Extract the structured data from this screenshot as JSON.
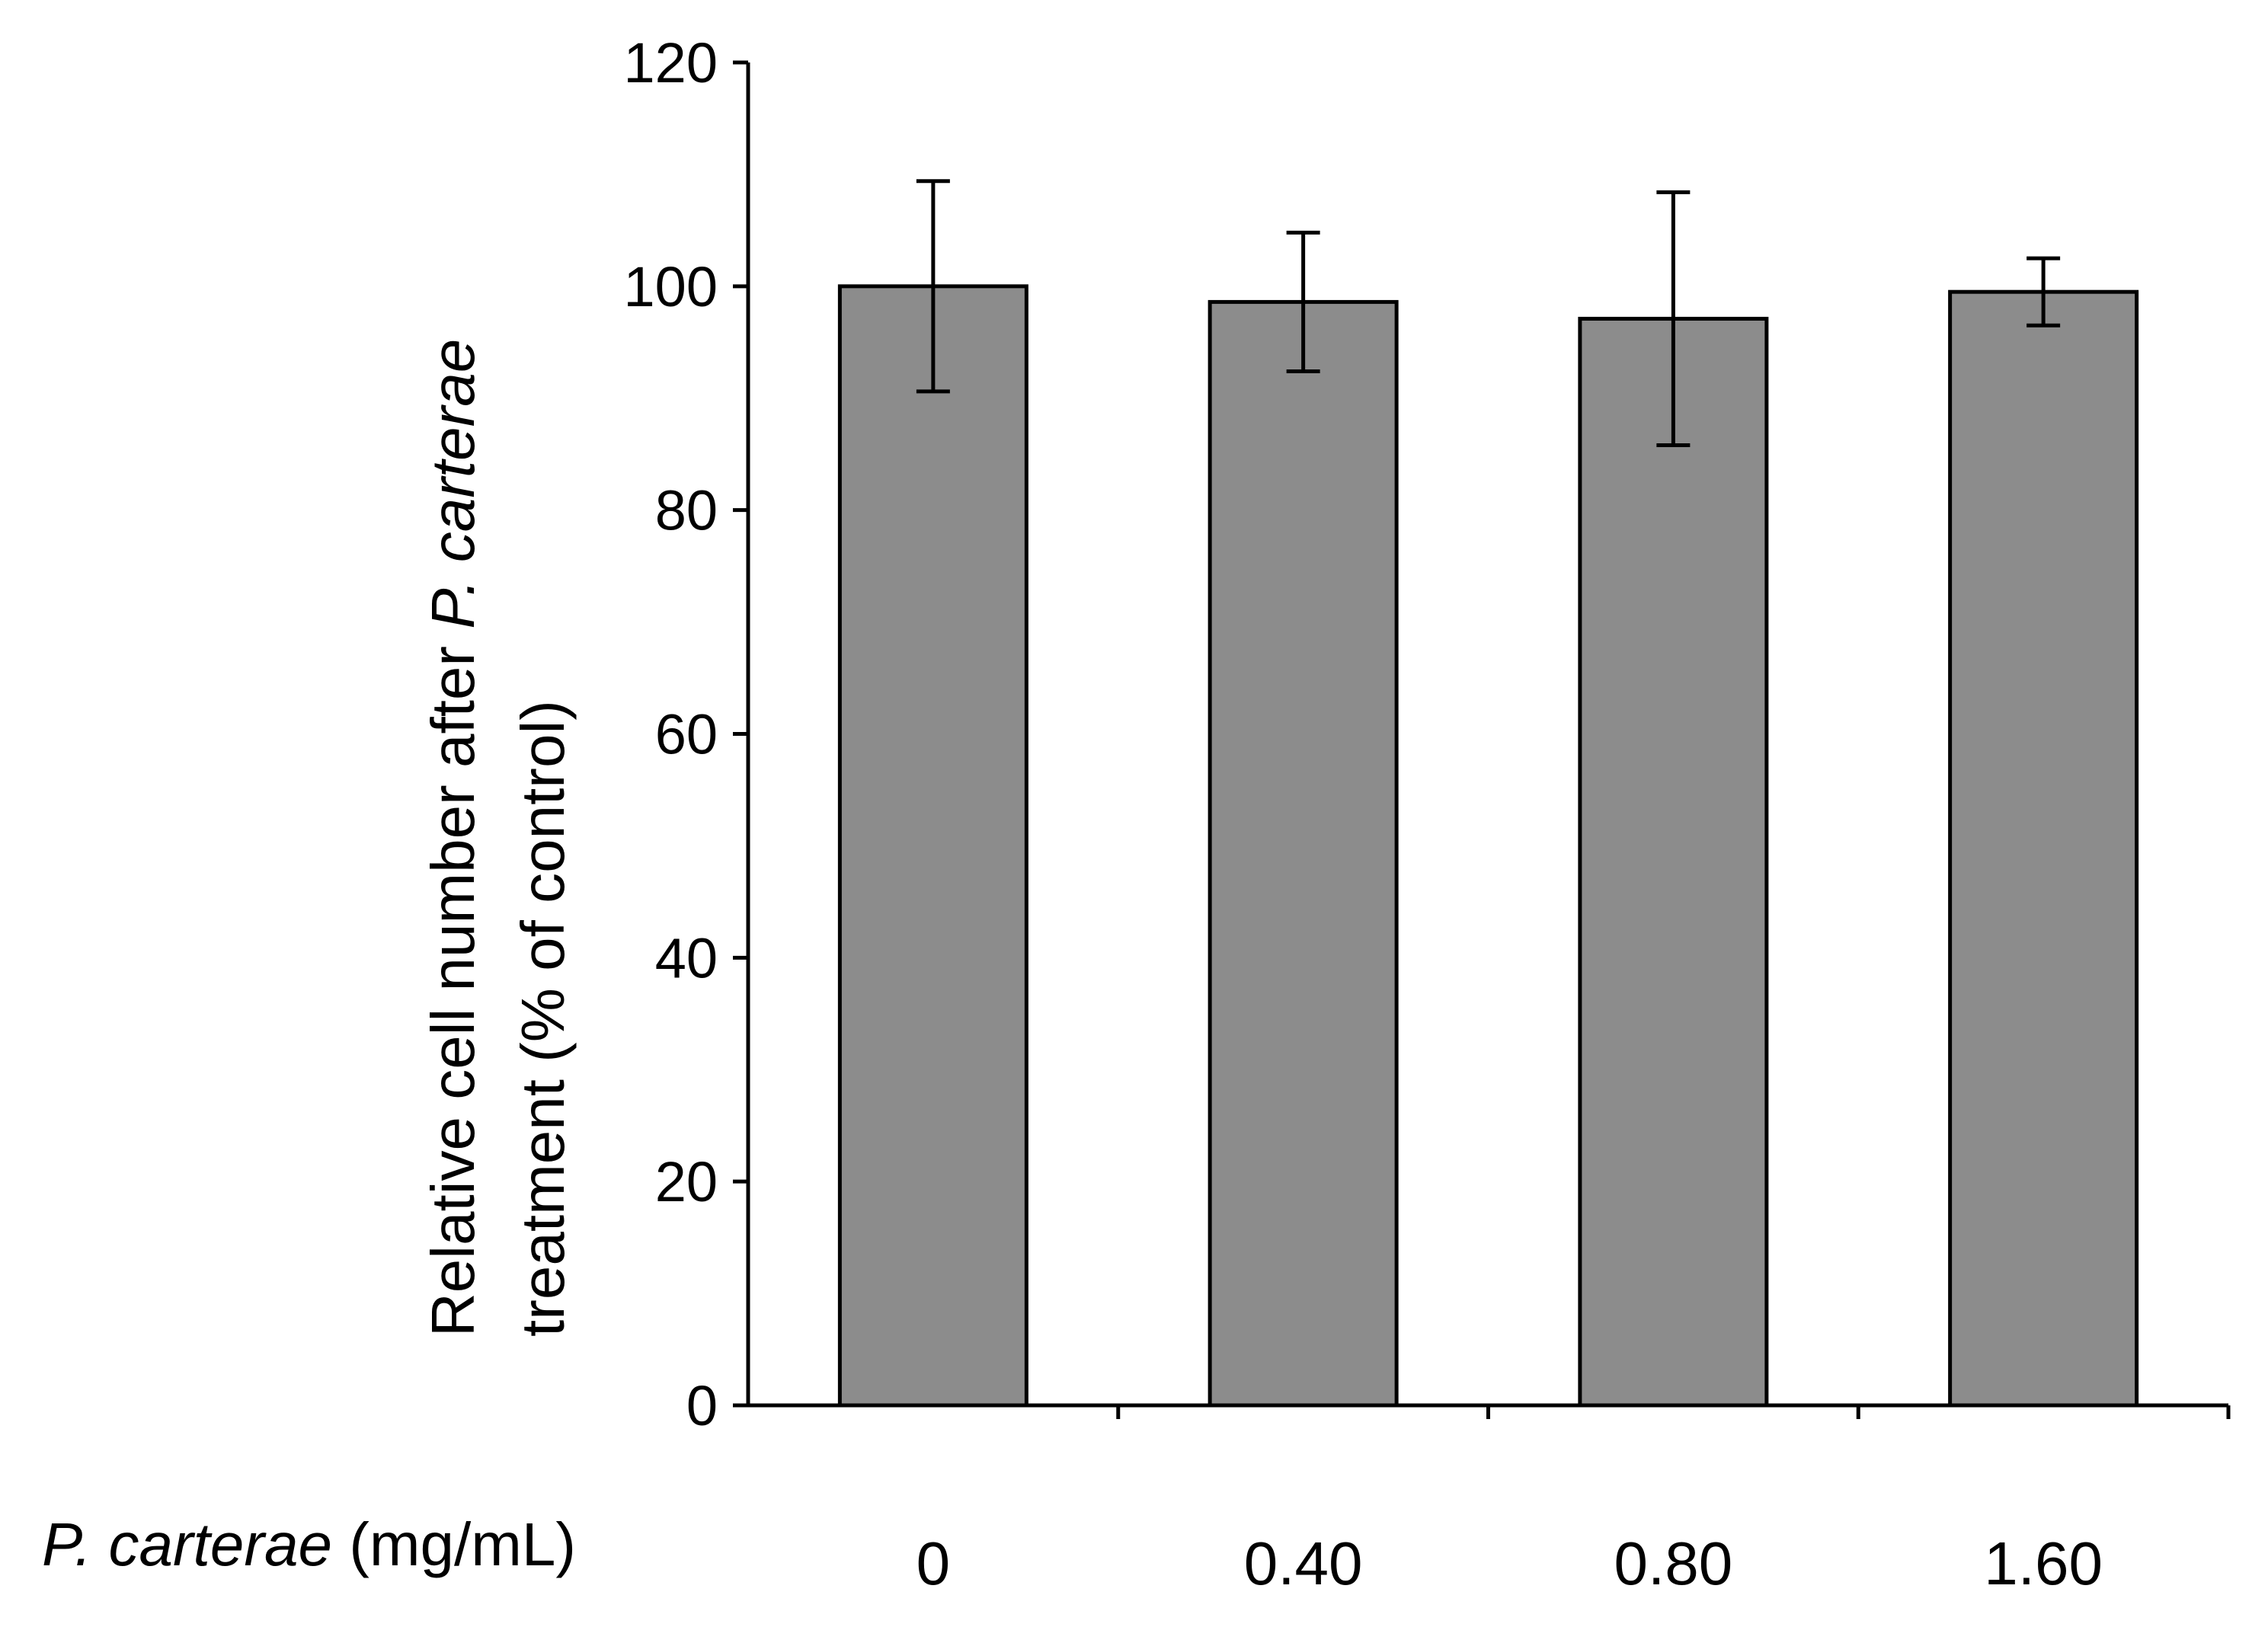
{
  "chart_data": {
    "type": "bar",
    "title": "",
    "categories": [
      "0",
      "0.40",
      "0.80",
      "1.60"
    ],
    "series": [
      {
        "name": "Relative cell number",
        "values": [
          100,
          98.6,
          97.1,
          99.5
        ],
        "error": [
          9.4,
          6.2,
          11.3,
          3.0
        ]
      }
    ],
    "ylim": [
      0,
      120
    ],
    "yticks": [
      "0",
      "20",
      "40",
      "60",
      "80",
      "100",
      "120"
    ],
    "xlabel": {
      "italic_part": "P. carterae",
      "plain_part": " (mg/mL)"
    },
    "ylabel": {
      "line1_plain": "Relative cell number after ",
      "line1_italic": "P. carterae",
      "line2": "treatment  (% of control)"
    },
    "colors": {
      "bar_fill": "#8c8c8c",
      "bar_stroke": "#000000",
      "axis": "#000000",
      "error_bar": "#000000",
      "background": "#ffffff"
    },
    "grid": false,
    "legend": "none"
  }
}
